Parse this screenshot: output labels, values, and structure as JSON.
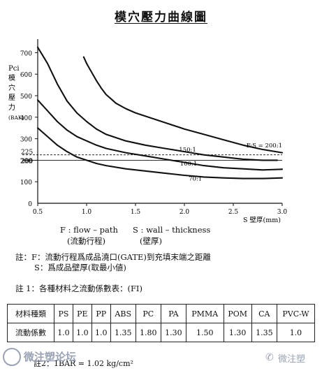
{
  "title": "模穴壓力曲線圖",
  "chart_data": {
    "type": "line",
    "ylabel_lines": [
      "Pci",
      "模",
      "穴",
      "壓",
      "力",
      "(BAK)"
    ],
    "xlabel": "S 壁厚(mm)",
    "x_ticks": [
      "0.5",
      "1.0",
      "1.5",
      "2.0",
      "2.5",
      "3.0"
    ],
    "y_ticks": [
      "100",
      "200",
      "300",
      "400",
      "500",
      "600",
      "700"
    ],
    "xlim": [
      0.5,
      3.0
    ],
    "ylim": [
      0,
      750
    ],
    "reference_lines": [
      {
        "label": "225",
        "value": 225,
        "style": "dashed"
      },
      {
        "label": "200",
        "value": 200,
        "style": "solid"
      }
    ],
    "series": [
      {
        "name": "F:S = 200:1",
        "x": [
          0.97,
          1.0,
          1.05,
          1.1,
          1.15,
          1.2,
          1.25,
          1.3,
          1.4,
          1.5,
          1.6,
          1.8,
          2.0,
          2.2,
          2.4,
          2.6,
          2.8,
          3.0
        ],
        "y": [
          680,
          650,
          610,
          570,
          535,
          505,
          485,
          465,
          440,
          420,
          405,
          375,
          345,
          320,
          295,
          270,
          250,
          235
        ]
      },
      {
        "name": "150:1",
        "x": [
          0.5,
          0.6,
          0.7,
          0.8,
          0.9,
          1.0,
          1.1,
          1.2,
          1.4,
          1.6,
          1.8,
          2.0,
          2.2,
          2.4,
          2.6,
          2.8,
          2.95
        ],
        "y": [
          725,
          650,
          555,
          475,
          420,
          380,
          345,
          320,
          290,
          270,
          255,
          240,
          225,
          215,
          205,
          200,
          200
        ]
      },
      {
        "name": "100:1",
        "x": [
          0.5,
          0.6,
          0.7,
          0.8,
          0.9,
          1.0,
          1.1,
          1.2,
          1.4,
          1.6,
          1.8,
          2.0,
          2.2,
          2.4,
          2.6,
          2.8,
          3.0
        ],
        "y": [
          480,
          430,
          380,
          340,
          310,
          290,
          270,
          255,
          235,
          220,
          205,
          190,
          175,
          165,
          160,
          155,
          158
        ]
      },
      {
        "name": "70:1",
        "x": [
          0.5,
          0.6,
          0.7,
          0.8,
          0.9,
          1.0,
          1.1,
          1.2,
          1.4,
          1.6,
          1.8,
          2.0,
          2.2,
          2.4,
          2.6,
          2.8,
          3.0
        ],
        "y": [
          350,
          310,
          270,
          240,
          215,
          200,
          185,
          175,
          160,
          150,
          140,
          130,
          122,
          118,
          115,
          115,
          118
        ]
      }
    ]
  },
  "notes": {
    "note_f": "註：F：流動行程爲成品澆口(GATE)到充填末端之距離",
    "note_s": "S：爲成品壁厚(取最小値)",
    "legend_f": "F : flow – path",
    "legend_f_cn": "(流動行程)",
    "legend_s": "S : wall – thickness",
    "legend_s_cn": "(壁厚)",
    "note_1": "註 1：各種材料之流動係數表：(FI)"
  },
  "table": {
    "header_label": "材料種類",
    "row_label": "流動係數",
    "materials": [
      "PS",
      "PE",
      "PP",
      "ABS",
      "PC",
      "PA",
      "PMMA",
      "POM",
      "CA",
      "PVC-W"
    ],
    "values": [
      "1.0",
      "1.0",
      "1.0",
      "1.35",
      "1.80",
      "1.30",
      "1.50",
      "1.30",
      "1.35",
      "1.0"
    ]
  },
  "footer": {
    "conversion": "註2：1BAR = 1.02 kg/cm²",
    "watermark_left": "微注塑论坛",
    "watermark_right": "微注塑"
  }
}
